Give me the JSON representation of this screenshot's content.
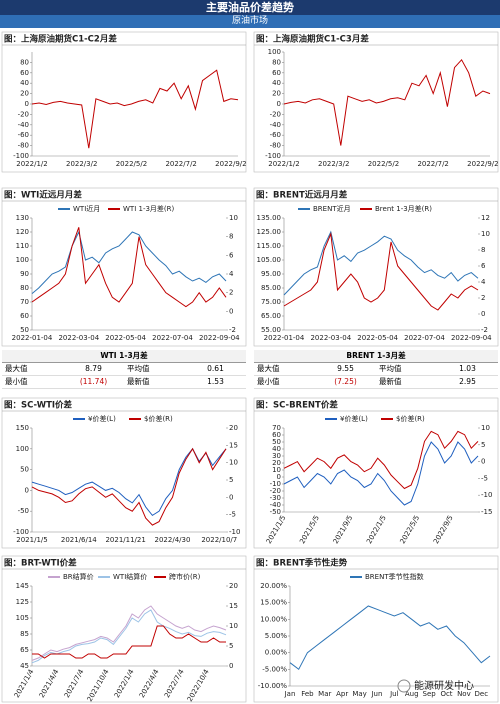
{
  "header": {
    "title": "主要油品价差趋势",
    "subtitle": "原油市场"
  },
  "watermark": "能源研发中心",
  "chart_data": [
    {
      "type": "line",
      "title": "图：上海原油期货C1-C2月差",
      "categories": [
        "2022/1/2",
        null,
        null,
        null,
        null,
        null,
        null,
        "2022/3/2",
        null,
        null,
        null,
        null,
        null,
        null,
        "2022/5/2",
        null,
        null,
        null,
        null,
        null,
        null,
        "2022/7/2",
        null,
        null,
        null,
        null,
        null,
        null,
        "2022/9/2",
        null
      ],
      "series": [
        {
          "name": "C1-C2",
          "color": "#c00000",
          "values": [
            0,
            2,
            -1,
            3,
            5,
            2,
            0,
            -2,
            -85,
            10,
            5,
            0,
            2,
            -3,
            0,
            5,
            8,
            2,
            30,
            25,
            40,
            10,
            35,
            -10,
            45,
            55,
            65,
            5,
            10,
            8
          ]
        }
      ],
      "ylim": [
        -100,
        100
      ],
      "yticks": [
        -100,
        -80,
        -60,
        -40,
        -20,
        0,
        20,
        40,
        60,
        80
      ]
    },
    {
      "type": "line",
      "title": "图：上海原油期货C1-C3月差",
      "categories": [
        "2022/1/2",
        null,
        null,
        null,
        null,
        null,
        null,
        "2022/3/2",
        null,
        null,
        null,
        null,
        null,
        null,
        "2022/5/2",
        null,
        null,
        null,
        null,
        null,
        null,
        "2022/7/2",
        null,
        null,
        null,
        null,
        null,
        null,
        "2022/9/2",
        null
      ],
      "series": [
        {
          "name": "C1-C3",
          "color": "#c00000",
          "values": [
            0,
            3,
            5,
            2,
            8,
            10,
            5,
            0,
            -80,
            15,
            10,
            5,
            8,
            2,
            5,
            10,
            12,
            8,
            40,
            35,
            55,
            20,
            60,
            -5,
            70,
            85,
            60,
            15,
            25,
            20
          ]
        }
      ],
      "ylim": [
        -100,
        100
      ],
      "yticks": [
        -100,
        -80,
        -60,
        -40,
        -20,
        0,
        20,
        40,
        60,
        80,
        100
      ]
    },
    {
      "type": "line",
      "title": "图：WTI近远月月差",
      "legend": "top",
      "categories": [
        "2022-01-04",
        null,
        null,
        null,
        null,
        null,
        null,
        "2022-03-04",
        null,
        null,
        null,
        null,
        null,
        null,
        "2022-05-04",
        null,
        null,
        null,
        null,
        null,
        null,
        "2022-07-04",
        null,
        null,
        null,
        null,
        null,
        null,
        "2022-09-04",
        null
      ],
      "series": [
        {
          "name": "WTI近月",
          "color": "#2e75b6",
          "values": [
            76,
            80,
            85,
            90,
            92,
            95,
            110,
            120,
            100,
            102,
            98,
            105,
            108,
            110,
            115,
            120,
            118,
            110,
            105,
            100,
            96,
            90,
            92,
            88,
            85,
            87,
            84,
            88,
            90,
            85
          ]
        },
        {
          "name": "WTI 1-3月差(R)",
          "color": "#c00000",
          "axis": "y2",
          "values": [
            1,
            1.5,
            2,
            2.5,
            3,
            4,
            7,
            9,
            3,
            4,
            5,
            3,
            1.5,
            1,
            2,
            3,
            8,
            5,
            4,
            3,
            2,
            1.5,
            1,
            0.5,
            1,
            2,
            1,
            1.5,
            2.5,
            1.5
          ]
        }
      ],
      "ylim": [
        50,
        130
      ],
      "yticks": [
        50,
        60,
        70,
        80,
        90,
        100,
        110,
        120,
        130
      ],
      "y2lim": [
        -2,
        10
      ],
      "y2ticks": [
        -2,
        0,
        2,
        4,
        6,
        8,
        10
      ]
    },
    {
      "type": "line",
      "title": "图：BRENT近远月月差",
      "legend": "top",
      "categories": [
        "2022-01-04",
        null,
        null,
        null,
        null,
        null,
        null,
        "2022-03-04",
        null,
        null,
        null,
        null,
        null,
        null,
        "2022-05-04",
        null,
        null,
        null,
        null,
        null,
        null,
        "2022-07-04",
        null,
        null,
        null,
        null,
        null,
        null,
        "2022-09-04",
        null
      ],
      "series": [
        {
          "name": "BRENT近月",
          "color": "#2e75b6",
          "values": [
            80,
            85,
            90,
            95,
            98,
            100,
            115,
            125,
            105,
            108,
            104,
            110,
            112,
            115,
            118,
            122,
            120,
            112,
            108,
            105,
            100,
            96,
            98,
            94,
            92,
            96,
            90,
            94,
            96,
            92
          ]
        },
        {
          "name": "Brent 1-3月差(R)",
          "color": "#c00000",
          "axis": "y2",
          "values": [
            1,
            1.5,
            2,
            2.5,
            3,
            4,
            8,
            10,
            3,
            4,
            5,
            4,
            2,
            1.5,
            2,
            3,
            9,
            6,
            5,
            4,
            3,
            2,
            1,
            0.5,
            1.5,
            2.5,
            2,
            3,
            3.5,
            3
          ]
        }
      ],
      "ylim": [
        55,
        135
      ],
      "yticks": [
        {
          "value": 55,
          "label": "55.00"
        },
        {
          "value": 65,
          "label": "65.00"
        },
        {
          "value": 75,
          "label": "75.00"
        },
        {
          "value": 85,
          "label": "85.00"
        },
        {
          "value": 95,
          "label": "95.00"
        },
        {
          "value": 105,
          "label": "105.00"
        },
        {
          "value": 115,
          "label": "115.00"
        },
        {
          "value": 125,
          "label": "125.00"
        },
        {
          "value": 135,
          "label": "135.00"
        }
      ],
      "y2lim": [
        -2,
        12
      ],
      "y2ticks": [
        -2,
        0,
        2,
        4,
        6,
        8,
        10,
        12
      ]
    },
    {
      "type": "line",
      "title": "图：SC-WTI价差",
      "legend": "top",
      "categories": [
        "2021/1/5",
        null,
        null,
        null,
        null,
        null,
        null,
        "2021/6/14",
        null,
        null,
        null,
        null,
        null,
        null,
        "2021/11/21",
        null,
        null,
        null,
        null,
        null,
        null,
        "2022/4/30",
        null,
        null,
        null,
        null,
        null,
        null,
        "2022/10/7",
        null
      ],
      "series": [
        {
          "name": "¥价差(L)",
          "color": "#1f5fbf",
          "values": [
            20,
            15,
            10,
            5,
            0,
            -10,
            -5,
            5,
            15,
            20,
            10,
            0,
            5,
            -5,
            -20,
            -30,
            -10,
            -40,
            -60,
            -50,
            -20,
            0,
            50,
            80,
            100,
            70,
            90,
            60,
            80,
            100
          ]
        },
        {
          "name": "$价差(R)",
          "color": "#c00000",
          "axis": "y2",
          "values": [
            3,
            2,
            1.5,
            1,
            0,
            -1.5,
            -1,
            1,
            2.5,
            3,
            1.5,
            0,
            1,
            -1,
            -3,
            -4,
            -1.5,
            -6,
            -8,
            -7,
            -3,
            0,
            7,
            11,
            14,
            10,
            13,
            8,
            11,
            14
          ]
        }
      ],
      "ylim": [
        -100,
        150
      ],
      "yticks": [
        -100,
        -50,
        0,
        50,
        100,
        150
      ],
      "y2lim": [
        -10,
        20
      ],
      "y2ticks": [
        -10,
        -5,
        0,
        5,
        10,
        15,
        20
      ]
    },
    {
      "type": "line",
      "title": "图：SC-BRENT价差",
      "legend": "top",
      "categories": [
        "2021/1/5",
        null,
        null,
        null,
        null,
        "2021/5/5",
        null,
        null,
        null,
        null,
        "2021/9/5",
        null,
        null,
        null,
        null,
        "2022/1/5",
        null,
        null,
        null,
        null,
        "2022/5/5",
        null,
        null,
        null,
        null,
        "2022/9/5",
        null,
        null,
        null,
        null
      ],
      "series": [
        {
          "name": "¥价差(L)",
          "color": "#1f5fbf",
          "values": [
            -10,
            -5,
            0,
            -15,
            -5,
            5,
            0,
            -10,
            5,
            10,
            0,
            -5,
            -15,
            -10,
            5,
            -5,
            -20,
            -30,
            -40,
            -35,
            -10,
            30,
            50,
            40,
            20,
            30,
            50,
            40,
            20,
            30
          ]
        },
        {
          "name": "$价差(R)",
          "color": "#c00000",
          "axis": "y2",
          "values": [
            -2,
            -1,
            0,
            -3,
            -1,
            1,
            0,
            -2,
            1,
            2,
            0,
            -1,
            -3,
            -2,
            1,
            -1,
            -4,
            -6,
            -8,
            -7,
            -2,
            6,
            9,
            8,
            4,
            6,
            9,
            8,
            4,
            6
          ]
        }
      ],
      "ylim": [
        -50,
        70
      ],
      "yticks": [
        -50,
        -40,
        -30,
        -20,
        -10,
        0,
        10,
        20,
        30,
        40,
        50,
        60,
        70
      ],
      "y2lim": [
        -15,
        10
      ],
      "y2ticks": [
        -15,
        -10,
        -5,
        0,
        5,
        10
      ]
    },
    {
      "type": "line",
      "title": "图：BRT-WTI价差",
      "legend": "top",
      "categories": [
        "2021/1/4",
        null,
        null,
        null,
        "2021/4/4",
        null,
        null,
        null,
        "2021/7/4",
        null,
        null,
        null,
        "2021/10/4",
        null,
        null,
        null,
        "2022/1/4",
        null,
        null,
        null,
        "2022/4/4",
        null,
        null,
        null,
        "2022/7/4",
        null,
        null,
        null,
        "2022/10/4",
        null,
        null,
        null
      ],
      "series": [
        {
          "name": "BR结算价",
          "color": "#c5a3cf",
          "values": [
            52,
            55,
            60,
            65,
            63,
            66,
            68,
            72,
            74,
            76,
            78,
            82,
            80,
            75,
            85,
            95,
            110,
            105,
            115,
            120,
            110,
            105,
            100,
            95,
            92,
            95,
            90,
            88,
            92,
            95,
            93,
            90
          ]
        },
        {
          "name": "WTI结算价",
          "color": "#9dc3e6",
          "values": [
            49,
            52,
            58,
            62,
            60,
            63,
            65,
            70,
            72,
            73,
            75,
            80,
            78,
            72,
            82,
            92,
            105,
            100,
            110,
            115,
            100,
            95,
            92,
            88,
            85,
            87,
            83,
            82,
            86,
            88,
            87,
            84
          ]
        },
        {
          "name": "跨市价(R)",
          "color": "#c00000",
          "axis": "y2",
          "values": [
            3,
            3,
            2,
            3,
            3,
            3,
            3,
            2,
            2,
            3,
            3,
            2,
            2,
            3,
            3,
            3,
            5,
            5,
            5,
            5,
            10,
            10,
            8,
            7,
            7,
            8,
            7,
            6,
            6,
            7,
            6,
            6
          ]
        }
      ],
      "ylim": [
        45,
        145
      ],
      "yticks": [
        45,
        65,
        85,
        105,
        125,
        145
      ],
      "y2lim": [
        0,
        20
      ],
      "y2ticks": [
        0,
        5,
        10,
        15,
        20
      ]
    },
    {
      "type": "line",
      "title": "图：BRENT季节性走势",
      "legend": "top",
      "categories": [
        "Jan",
        null,
        "Feb",
        null,
        "Mar",
        null,
        "Apr",
        null,
        "May",
        null,
        "Jun",
        null,
        "Jul",
        null,
        "Aug",
        null,
        "Sep",
        null,
        "Oct",
        null,
        "Nov",
        null,
        "Dec",
        null
      ],
      "series": [
        {
          "name": "BRENT季节性指数",
          "color": "#2e75b6",
          "values": [
            -3,
            -5,
            0,
            2,
            4,
            6,
            8,
            10,
            12,
            14,
            13,
            12,
            11,
            12,
            10,
            8,
            9,
            7,
            8,
            5,
            3,
            0,
            -3,
            -1
          ]
        }
      ],
      "ylim": [
        -10,
        20
      ],
      "yticks": [
        {
          "value": -10,
          "label": "-10.00%"
        },
        {
          "value": -5,
          "label": "-5.00%"
        },
        {
          "value": 0,
          "label": "0.00%"
        },
        {
          "value": 5,
          "label": "5.00%"
        },
        {
          "value": 10,
          "label": "10.00%"
        },
        {
          "value": 15,
          "label": "15.00%"
        },
        {
          "value": 20,
          "label": "20.00%"
        }
      ]
    }
  ],
  "tables": [
    {
      "title": "WTI 1-3月差",
      "rows": [
        [
          "最大值",
          "8.79",
          "平均值",
          "0.61"
        ],
        [
          "最小值",
          "(11.74)",
          "最新值",
          "1.53"
        ]
      ]
    },
    {
      "title": "BRENT 1-3月差",
      "rows": [
        [
          "最大值",
          "9.55",
          "平均值",
          "1.03"
        ],
        [
          "最小值",
          "(7.25)",
          "最新值",
          "2.95"
        ]
      ]
    }
  ]
}
